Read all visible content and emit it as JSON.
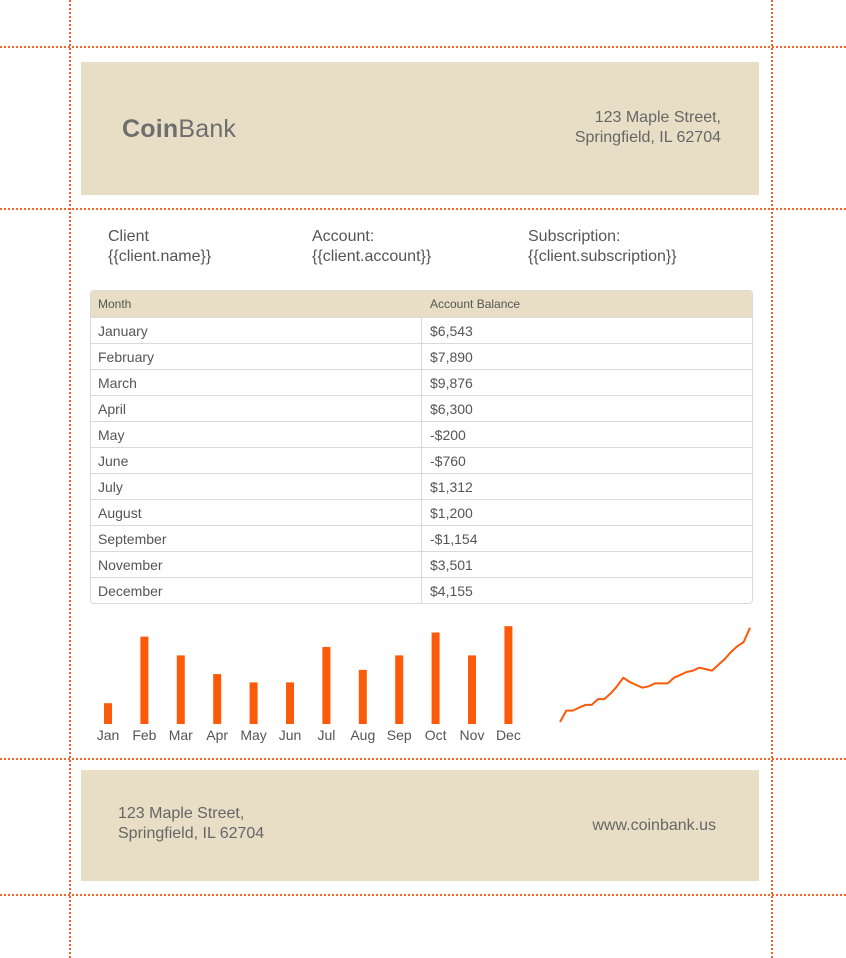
{
  "header": {
    "logo_bold": "Coin",
    "logo_regular": "Bank",
    "address_line1": "123 Maple Street,",
    "address_line2": "Springfield, IL 62704"
  },
  "info": {
    "client_label": "Client",
    "client_value": "{{client.name}}",
    "account_label": "Account:",
    "account_value": "{{client.account}}",
    "subscription_label": "Subscription:",
    "subscription_value": "{{client.subscription}}"
  },
  "table": {
    "headers": [
      "Month",
      "Account Balance"
    ],
    "rows": [
      [
        "January",
        "$6,543"
      ],
      [
        "February",
        "$7,890"
      ],
      [
        "March",
        "$9,876"
      ],
      [
        "April",
        "$6,300"
      ],
      [
        "May",
        "-$200"
      ],
      [
        "June",
        "-$760"
      ],
      [
        "July",
        "$1,312"
      ],
      [
        "August",
        "$1,200"
      ],
      [
        "September",
        "-$1,154"
      ],
      [
        "November",
        "$3,501"
      ],
      [
        "December",
        "$4,155"
      ]
    ]
  },
  "chart_data": [
    {
      "type": "bar",
      "categories": [
        "Jan",
        "Feb",
        "Mar",
        "Apr",
        "May",
        "Jun",
        "Jul",
        "Aug",
        "Sep",
        "Oct",
        "Nov",
        "Dec"
      ],
      "values": [
        20,
        84,
        66,
        48,
        40,
        40,
        74,
        52,
        66,
        88,
        66,
        94
      ],
      "ylim": [
        0,
        100
      ],
      "color": "#fc5a0a"
    },
    {
      "type": "line",
      "values": [
        0,
        8,
        8,
        10,
        12,
        12,
        16,
        16,
        20,
        25,
        31,
        28,
        26,
        24,
        25,
        27,
        27,
        27,
        31,
        33,
        35,
        36,
        38,
        37,
        36,
        40,
        44,
        49,
        53,
        56,
        66
      ],
      "ylim": [
        0,
        70
      ],
      "color": "#fc5a0a"
    }
  ],
  "footer": {
    "address_line1": "123 Maple Street,",
    "address_line2": "Springfield, IL 62704",
    "website": "www.coinbank.us"
  }
}
